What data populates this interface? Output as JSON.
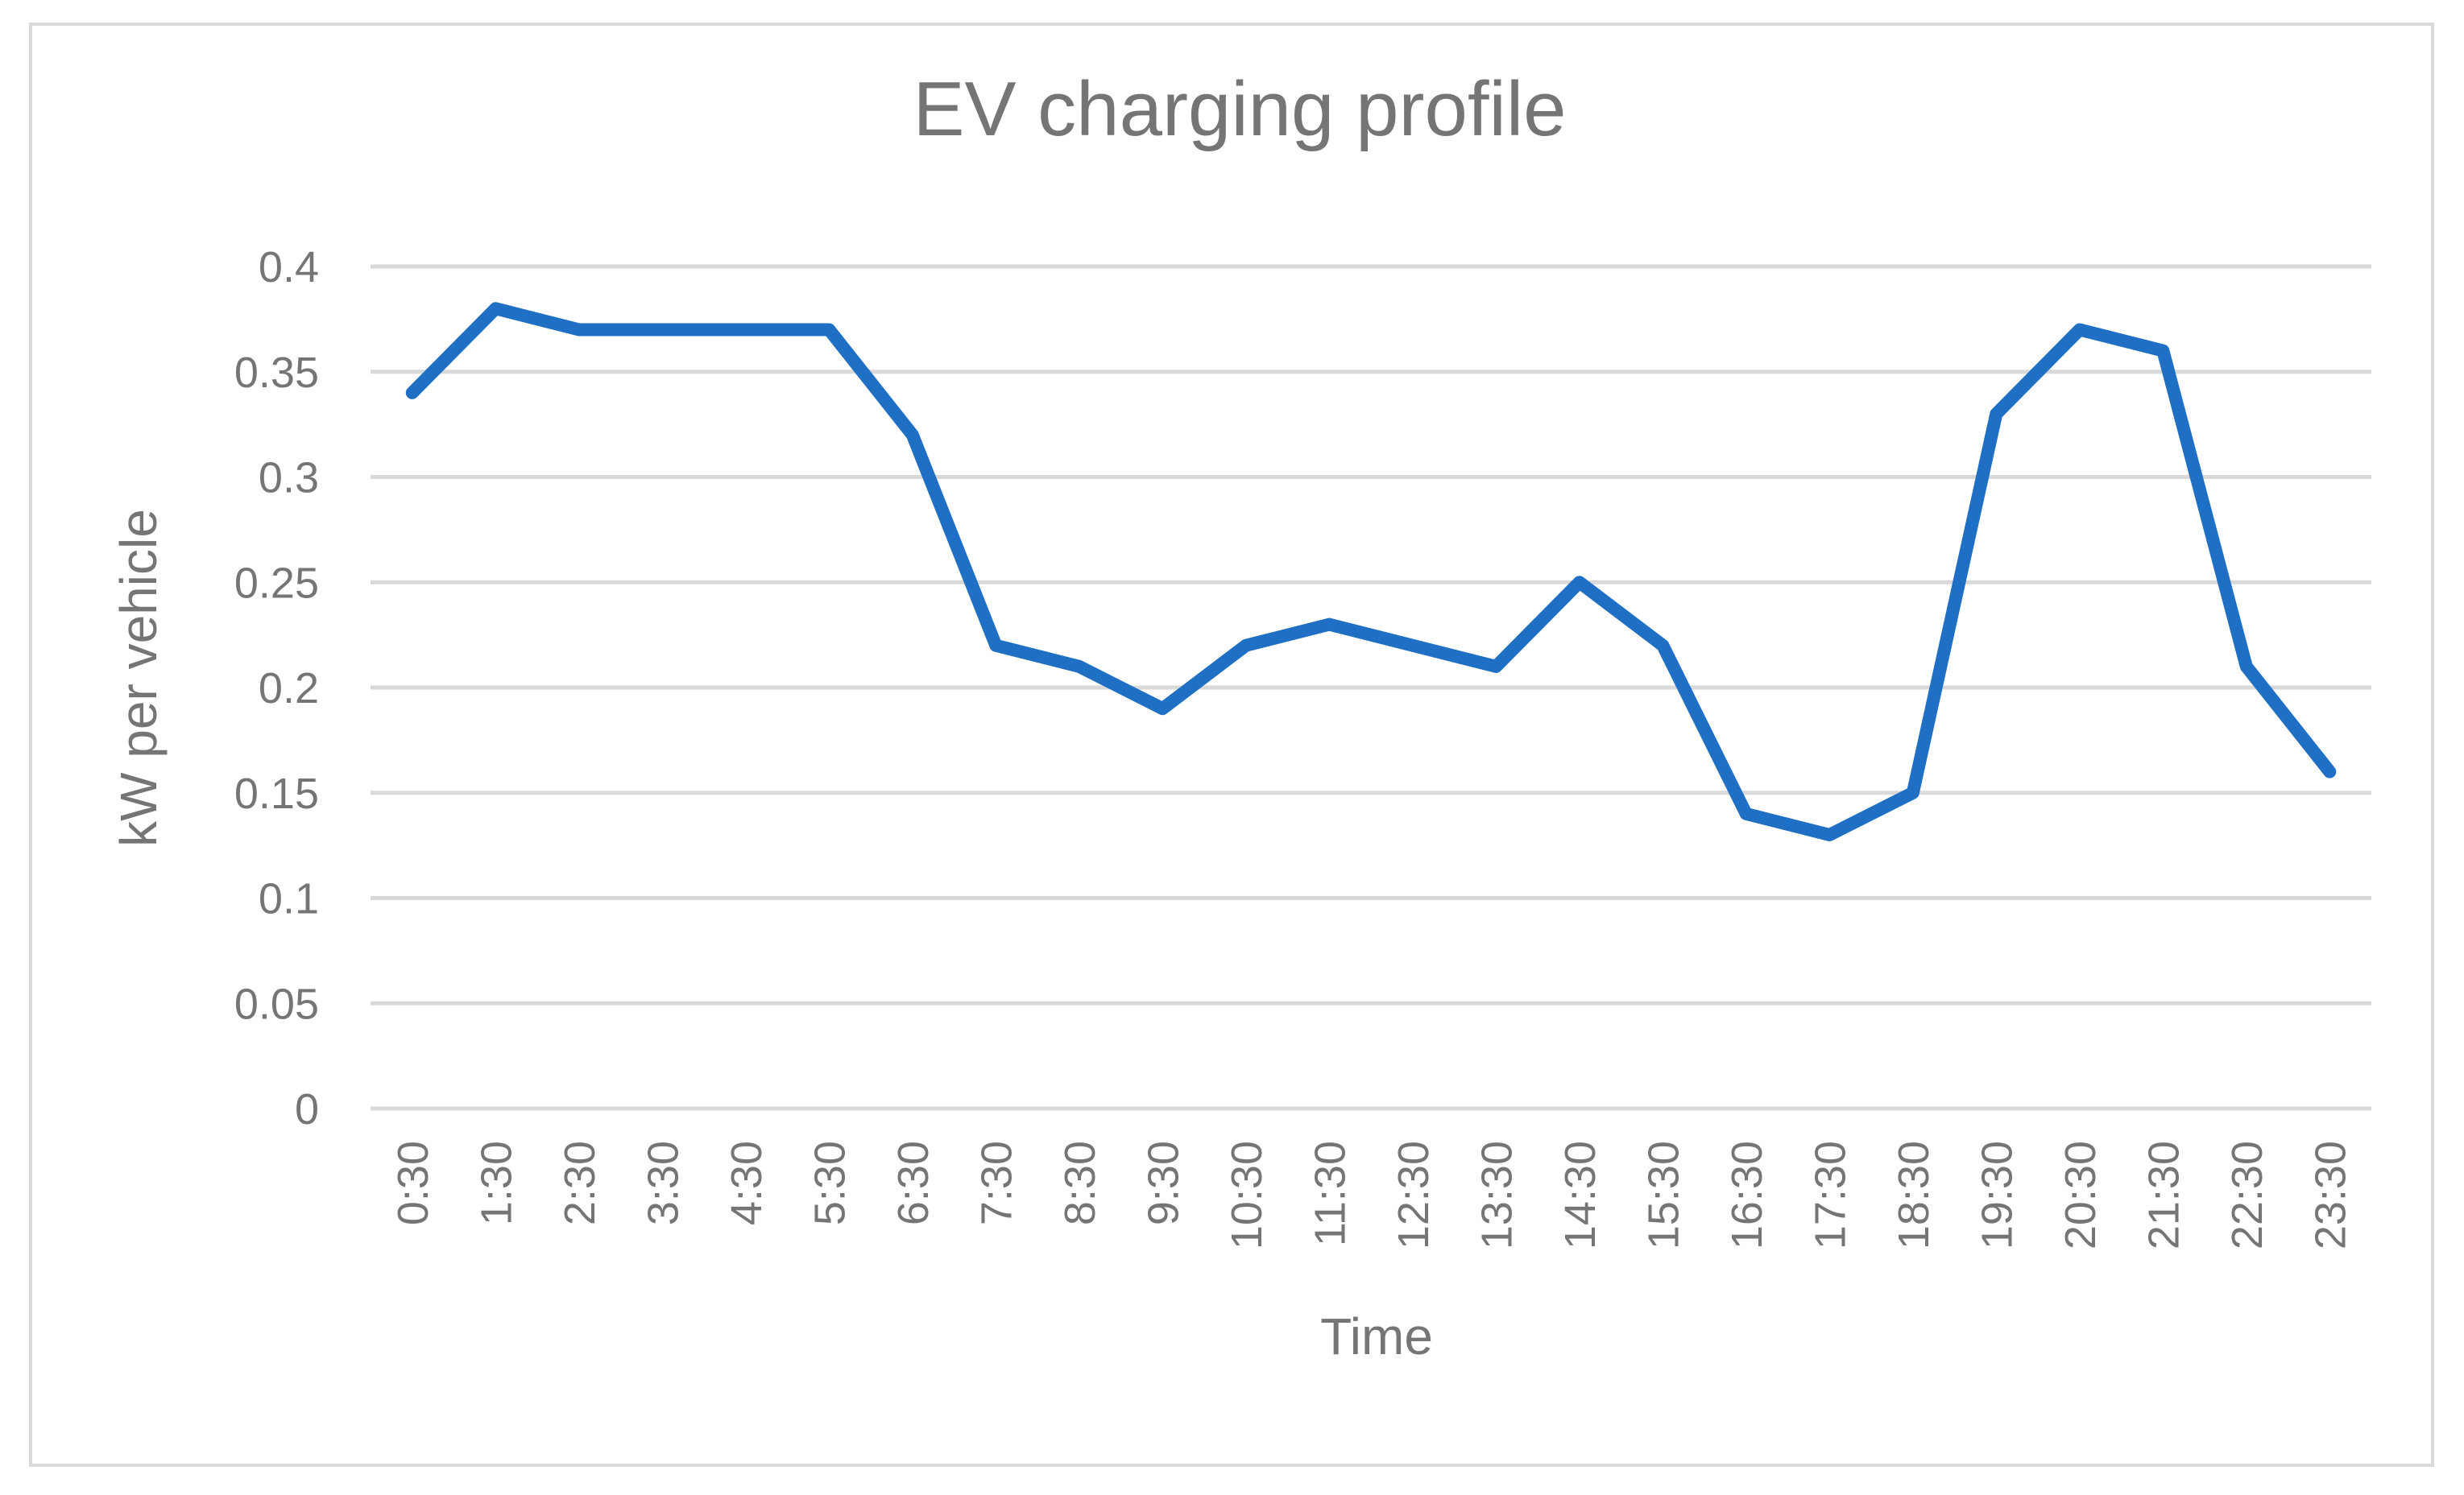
{
  "chart_data": {
    "type": "line",
    "title": "EV charging profile",
    "xlabel": "Time",
    "ylabel": "kW per vehicle",
    "categories": [
      "0:30",
      "1:30",
      "2:30",
      "3:30",
      "4:30",
      "5:30",
      "6:30",
      "7:30",
      "8:30",
      "9:30",
      "10:30",
      "11:30",
      "12:30",
      "13:30",
      "14:30",
      "15:30",
      "16:30",
      "17:30",
      "18:30",
      "19:30",
      "20:30",
      "21:30",
      "22:30",
      "23:30"
    ],
    "series": [
      {
        "values": [
          0.34,
          0.38,
          0.37,
          0.37,
          0.37,
          0.37,
          0.32,
          0.22,
          0.21,
          0.19,
          0.22,
          0.23,
          0.22,
          0.21,
          0.25,
          0.22,
          0.14,
          0.13,
          0.15,
          0.33,
          0.37,
          0.36,
          0.21,
          0.16
        ]
      }
    ],
    "yticks": [
      "0",
      "0.05",
      "0.1",
      "0.15",
      "0.2",
      "0.25",
      "0.3",
      "0.35",
      "0.4"
    ],
    "ylim": [
      0,
      0.4
    ],
    "grid": true,
    "legend": "none",
    "colors": {
      "series": "#1f6fc5",
      "grid": "#d9d9d9",
      "text": "#757575"
    }
  }
}
